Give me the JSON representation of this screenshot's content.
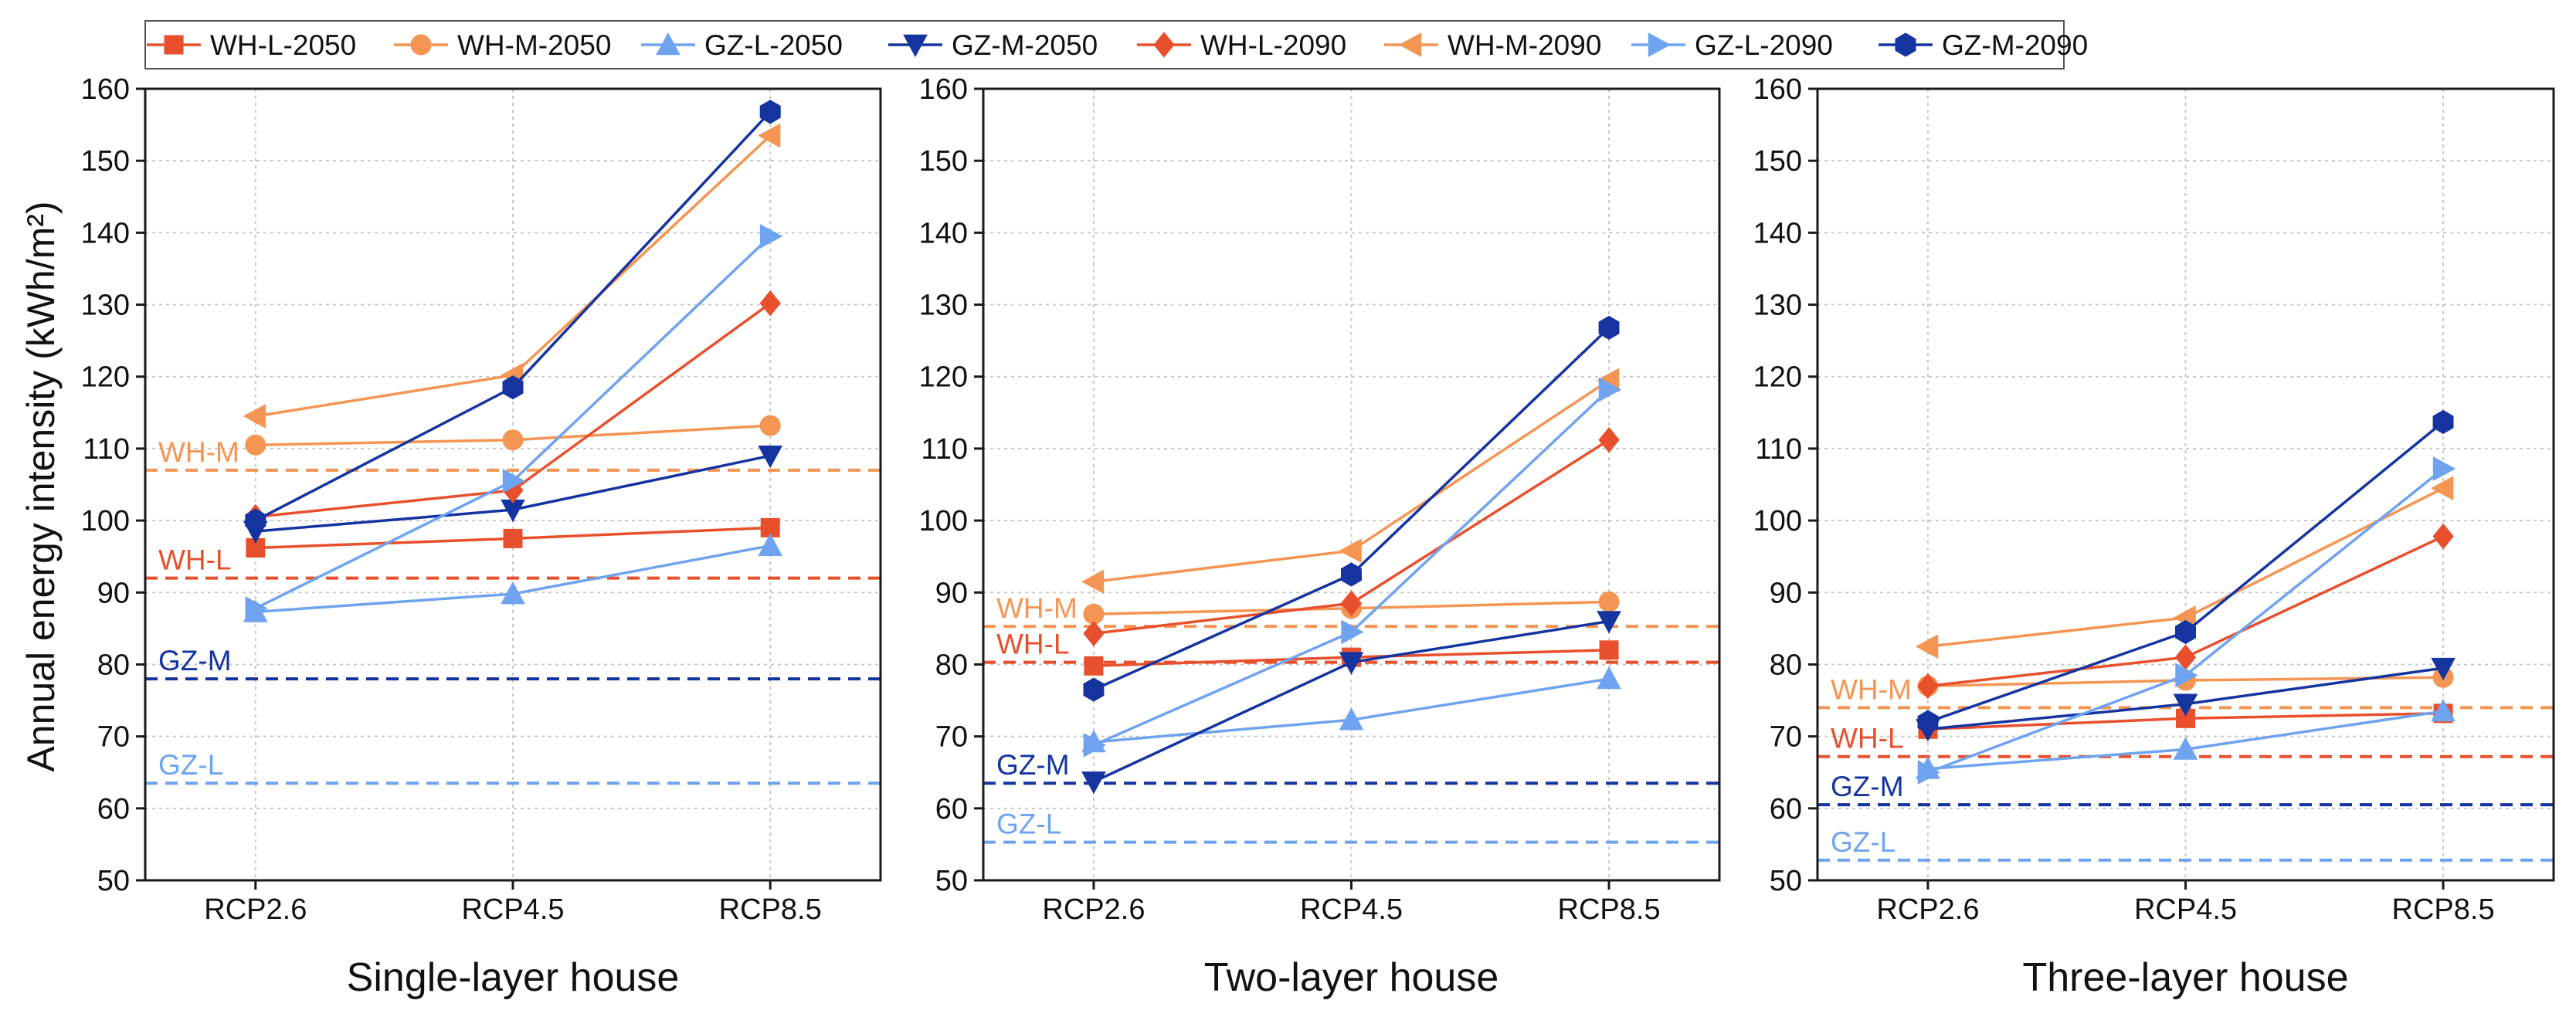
{
  "chart_data": {
    "type": "line",
    "ylabel": "Annual energy intensity (kWh/m²)",
    "ylim": [
      50,
      160
    ],
    "yticks": [
      50,
      60,
      70,
      80,
      90,
      100,
      110,
      120,
      130,
      140,
      150,
      160
    ],
    "categories": [
      "RCP2.6",
      "RCP4.5",
      "RCP8.5"
    ],
    "grid": true,
    "legend_position": "top",
    "legend": [
      {
        "key": "WH-L-2050",
        "label": "WH-L-2050",
        "color": "#E8502D",
        "marker": "square"
      },
      {
        "key": "WH-M-2050",
        "label": "WH-M-2050",
        "color": "#F59553",
        "marker": "circle"
      },
      {
        "key": "GZ-L-2050",
        "label": "GZ-L-2050",
        "color": "#6FA3F0",
        "marker": "triangle-up"
      },
      {
        "key": "GZ-M-2050",
        "label": "GZ-M-2050",
        "color": "#1534A0",
        "marker": "triangle-down"
      },
      {
        "key": "WH-L-2090",
        "label": "WH-L-2090",
        "color": "#E8502D",
        "marker": "diamond"
      },
      {
        "key": "WH-M-2090",
        "label": "WH-M-2090",
        "color": "#F59553",
        "marker": "triangle-left"
      },
      {
        "key": "GZ-L-2090",
        "label": "GZ-L-2090",
        "color": "#6FA3F0",
        "marker": "triangle-right"
      },
      {
        "key": "GZ-M-2090",
        "label": "GZ-M-2090",
        "color": "#1534A0",
        "marker": "hexagon"
      }
    ],
    "ref_colors": {
      "WH-M": "#F59553",
      "WH-L": "#E8502D",
      "GZ-M": "#1534A0",
      "GZ-L": "#6FA3F0"
    },
    "panels": [
      {
        "xlabel": "Single-layer house",
        "reference_lines": [
          {
            "label": "WH-M",
            "value": 107
          },
          {
            "label": "WH-L",
            "value": 92
          },
          {
            "label": "GZ-M",
            "value": 78
          },
          {
            "label": "GZ-L",
            "value": 63.5
          }
        ],
        "series": [
          {
            "key": "WH-L-2050",
            "values": [
              96.2,
              97.5,
              99
            ]
          },
          {
            "key": "WH-M-2050",
            "values": [
              110.5,
              111.2,
              113.2
            ]
          },
          {
            "key": "GZ-L-2050",
            "values": [
              87.3,
              89.8,
              96.5
            ]
          },
          {
            "key": "GZ-M-2050",
            "values": [
              98.5,
              101.5,
              109
            ]
          },
          {
            "key": "WH-L-2090",
            "values": [
              100.5,
              104.2,
              130.2
            ]
          },
          {
            "key": "WH-M-2090",
            "values": [
              114.5,
              120.2,
              153.5
            ]
          },
          {
            "key": "GZ-L-2090",
            "values": [
              87.8,
              105.5,
              139.5
            ]
          },
          {
            "key": "GZ-M-2090",
            "values": [
              100,
              118.5,
              156.8
            ]
          }
        ]
      },
      {
        "xlabel": "Two-layer house",
        "reference_lines": [
          {
            "label": "WH-M",
            "value": 85.3
          },
          {
            "label": "WH-L",
            "value": 80.3
          },
          {
            "label": "GZ-M",
            "value": 63.5
          },
          {
            "label": "GZ-L",
            "value": 55.3
          }
        ],
        "series": [
          {
            "key": "WH-L-2050",
            "values": [
              79.8,
              81,
              82
            ]
          },
          {
            "key": "WH-M-2050",
            "values": [
              87,
              87.8,
              88.7
            ]
          },
          {
            "key": "GZ-L-2050",
            "values": [
              69.2,
              72.3,
              78
            ]
          },
          {
            "key": "GZ-M-2050",
            "values": [
              63.7,
              80.3,
              86
            ]
          },
          {
            "key": "WH-L-2090",
            "values": [
              84.3,
              88.5,
              111.2
            ]
          },
          {
            "key": "WH-M-2090",
            "values": [
              91.5,
              95.8,
              119.5
            ]
          },
          {
            "key": "GZ-L-2090",
            "values": [
              68.8,
              84.5,
              118.2
            ]
          },
          {
            "key": "GZ-M-2090",
            "values": [
              76.5,
              92.5,
              126.8
            ]
          }
        ]
      },
      {
        "xlabel": "Three-layer house",
        "reference_lines": [
          {
            "label": "WH-M",
            "value": 74
          },
          {
            "label": "WH-L",
            "value": 67.2
          },
          {
            "label": "GZ-M",
            "value": 60.5
          },
          {
            "label": "GZ-L",
            "value": 52.8
          }
        ],
        "series": [
          {
            "key": "WH-L-2050",
            "values": [
              71,
              72.5,
              73.2
            ]
          },
          {
            "key": "WH-M-2050",
            "values": [
              77,
              77.8,
              78.2
            ]
          },
          {
            "key": "GZ-L-2050",
            "values": [
              65.5,
              68.2,
              73.5
            ]
          },
          {
            "key": "GZ-M-2050",
            "values": [
              71,
              74.5,
              79.5
            ]
          },
          {
            "key": "WH-L-2090",
            "values": [
              77,
              81,
              97.8
            ]
          },
          {
            "key": "WH-M-2090",
            "values": [
              82.5,
              86.5,
              104.5
            ]
          },
          {
            "key": "GZ-L-2090",
            "values": [
              65,
              78.5,
              107.2
            ]
          },
          {
            "key": "GZ-M-2090",
            "values": [
              72,
              84.5,
              113.7
            ]
          }
        ]
      }
    ]
  }
}
